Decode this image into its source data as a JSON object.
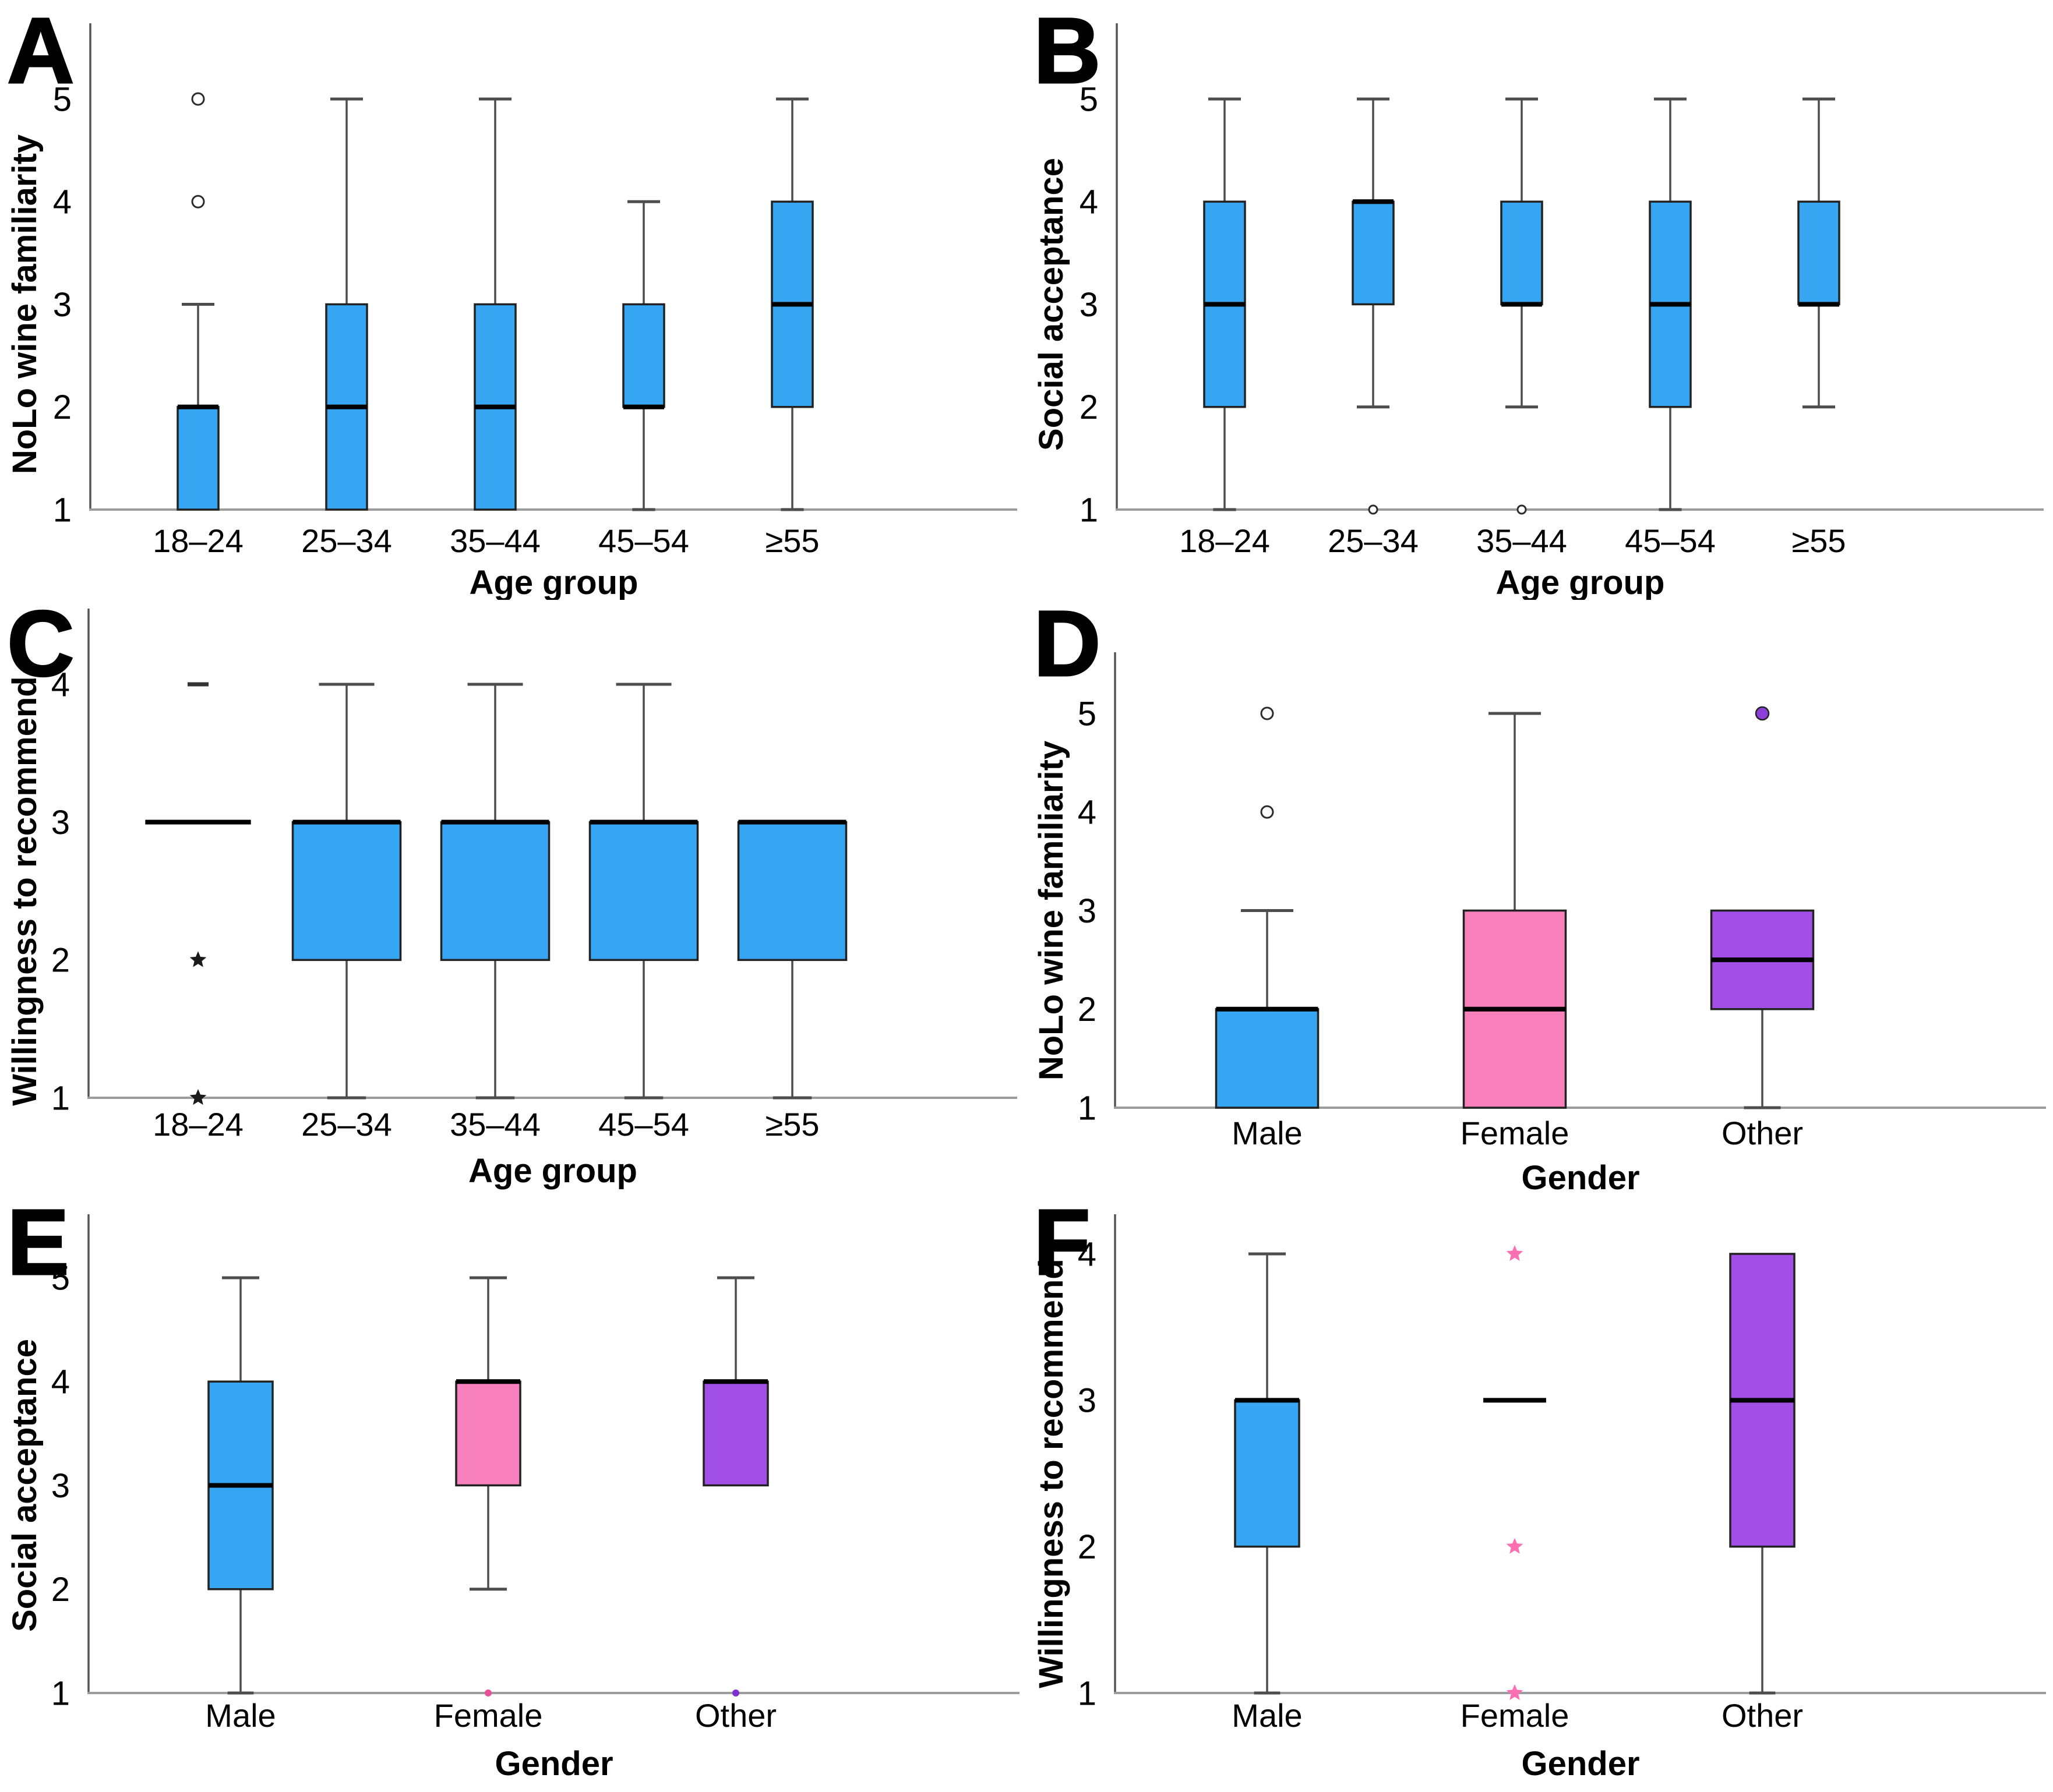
{
  "figure": {
    "background": "#ffffff",
    "accent_colors": {
      "blue": "#36A5F2",
      "pink": "#F780BD",
      "purple": "#A14FE4"
    }
  },
  "chart_data": [
    {
      "type": "boxplot",
      "id": "A",
      "ylabel": "NoLo wine familiarity",
      "xlabel": "Age group",
      "ylim": [
        1,
        5
      ],
      "yticks": [
        1,
        2,
        3,
        4,
        5
      ],
      "categories": [
        "18–24",
        "25–34",
        "35–44",
        "45–54",
        "≥55"
      ],
      "boxes": [
        {
          "category": "18–24",
          "q1": 1,
          "q3": 2,
          "median": 2,
          "whisker_low": null,
          "whisker_high": 3,
          "fill": "#36A5F2",
          "outliers": [
            {
              "value": 4,
              "marker": "circle",
              "color": "#2b2b2b"
            },
            {
              "value": 5,
              "marker": "circle",
              "color": "#2b2b2b"
            }
          ]
        },
        {
          "category": "25–34",
          "q1": 1,
          "q3": 3,
          "median": 2,
          "whisker_low": null,
          "whisker_high": 5,
          "fill": "#36A5F2",
          "outliers": []
        },
        {
          "category": "35–44",
          "q1": 1,
          "q3": 3,
          "median": 2,
          "whisker_low": null,
          "whisker_high": 5,
          "fill": "#36A5F2",
          "outliers": []
        },
        {
          "category": "45–54",
          "q1": 2,
          "q3": 3,
          "median": 2,
          "whisker_low": 1,
          "whisker_high": 4,
          "fill": "#36A5F2",
          "outliers": []
        },
        {
          "category": "≥55",
          "q1": 2,
          "q3": 4,
          "median": 3,
          "whisker_low": 1,
          "whisker_high": 5,
          "fill": "#36A5F2",
          "outliers": []
        }
      ]
    },
    {
      "type": "boxplot",
      "id": "B",
      "ylabel": "Social acceptance",
      "xlabel": "Age group",
      "ylim": [
        1,
        5
      ],
      "yticks": [
        1,
        2,
        3,
        4,
        5
      ],
      "categories": [
        "18–24",
        "25–34",
        "35–44",
        "45–54",
        "≥55"
      ],
      "boxes": [
        {
          "category": "18–24",
          "q1": 2,
          "q3": 4,
          "median": 3,
          "whisker_low": 1,
          "whisker_high": 5,
          "fill": "#36A5F2",
          "outliers": []
        },
        {
          "category": "25–34",
          "q1": 3,
          "q3": 4,
          "median": 4,
          "whisker_low": 2,
          "whisker_high": 5,
          "fill": "#36A5F2",
          "outliers": [
            {
              "value": 1,
              "marker": "circle-small",
              "color": "#2b2b2b"
            }
          ]
        },
        {
          "category": "35–44",
          "q1": 3,
          "q3": 4,
          "median": 3,
          "whisker_low": 2,
          "whisker_high": 5,
          "fill": "#36A5F2",
          "outliers": [
            {
              "value": 1,
              "marker": "circle-small",
              "color": "#2b2b2b"
            }
          ]
        },
        {
          "category": "45–54",
          "q1": 2,
          "q3": 4,
          "median": 3,
          "whisker_low": 1,
          "whisker_high": 5,
          "fill": "#36A5F2",
          "outliers": []
        },
        {
          "category": "≥55",
          "q1": 3,
          "q3": 4,
          "median": 3,
          "whisker_low": 2,
          "whisker_high": 5,
          "fill": "#36A5F2",
          "outliers": []
        }
      ]
    },
    {
      "type": "boxplot",
      "id": "C",
      "ylabel": "Willingness to recommend",
      "xlabel": "Age group",
      "ylim": [
        1,
        4
      ],
      "yticks": [
        1,
        2,
        3,
        4
      ],
      "categories": [
        "18–24",
        "25–34",
        "35–44",
        "45–54",
        "≥55"
      ],
      "boxes": [
        {
          "category": "18–24",
          "q1": null,
          "q3": null,
          "median": 3,
          "whisker_low": null,
          "whisker_high": null,
          "fill": "#36A5F2",
          "outliers": [
            {
              "value": 4,
              "marker": "dash",
              "color": "#333333"
            },
            {
              "value": 2,
              "marker": "star",
              "color": "#1a1a1a"
            },
            {
              "value": 1,
              "marker": "star",
              "color": "#1a1a1a"
            }
          ]
        },
        {
          "category": "25–34",
          "q1": 2,
          "q3": 3,
          "median": 3,
          "whisker_low": 1,
          "whisker_high": 4,
          "fill": "#36A5F2",
          "outliers": []
        },
        {
          "category": "35–44",
          "q1": 2,
          "q3": 3,
          "median": 3,
          "whisker_low": 1,
          "whisker_high": 4,
          "fill": "#36A5F2",
          "outliers": []
        },
        {
          "category": "45–54",
          "q1": 2,
          "q3": 3,
          "median": 3,
          "whisker_low": 1,
          "whisker_high": 4,
          "fill": "#36A5F2",
          "outliers": []
        },
        {
          "category": "≥55",
          "q1": 2,
          "q3": 3,
          "median": 3,
          "whisker_low": 1,
          "whisker_high": null,
          "fill": "#36A5F2",
          "outliers": []
        }
      ]
    },
    {
      "type": "boxplot",
      "id": "D",
      "ylabel": "NoLo wine familiarity",
      "xlabel": "Gender",
      "ylim": [
        1,
        5
      ],
      "yticks": [
        1,
        2,
        3,
        4,
        5
      ],
      "categories": [
        "Male",
        "Female",
        "Other"
      ],
      "boxes": [
        {
          "category": "Male",
          "q1": 1,
          "q3": 2,
          "median": 2,
          "whisker_low": null,
          "whisker_high": 3,
          "fill": "#36A5F2",
          "outliers": [
            {
              "value": 4,
              "marker": "circle",
              "color": "#2b2b2b"
            },
            {
              "value": 5,
              "marker": "circle",
              "color": "#2b2b2b"
            }
          ]
        },
        {
          "category": "Female",
          "q1": 1,
          "q3": 3,
          "median": 2,
          "whisker_low": null,
          "whisker_high": 5,
          "fill": "#F780BD",
          "outliers": []
        },
        {
          "category": "Other",
          "q1": 2,
          "q3": 3,
          "median": 2.5,
          "whisker_low": 1,
          "whisker_high": null,
          "fill": "#A14FE4",
          "outliers": [
            {
              "value": 5,
              "marker": "circle-filled",
              "color": "#8B3FD8"
            }
          ]
        }
      ]
    },
    {
      "type": "boxplot",
      "id": "E",
      "ylabel": "Social acceptance",
      "xlabel": "Gender",
      "ylim": [
        1,
        5
      ],
      "yticks": [
        1,
        2,
        3,
        4,
        5
      ],
      "categories": [
        "Male",
        "Female",
        "Other"
      ],
      "boxes": [
        {
          "category": "Male",
          "q1": 2,
          "q3": 4,
          "median": 3,
          "whisker_low": 1,
          "whisker_high": 5,
          "fill": "#36A5F2",
          "outliers": []
        },
        {
          "category": "Female",
          "q1": 3,
          "q3": 4,
          "median": 4,
          "whisker_low": 2,
          "whisker_high": 5,
          "fill": "#F780BD",
          "outliers": [
            {
              "value": 1,
              "marker": "dot",
              "color": "#E8519A"
            }
          ]
        },
        {
          "category": "Other",
          "q1": 3,
          "q3": 4,
          "median": 4,
          "whisker_low": null,
          "whisker_high": 5,
          "fill": "#A14FE4",
          "outliers": [
            {
              "value": 1,
              "marker": "dot",
              "color": "#7E2FD1"
            }
          ]
        }
      ]
    },
    {
      "type": "boxplot",
      "id": "F",
      "ylabel": "Willingness to recommend",
      "xlabel": "Gender",
      "ylim": [
        1,
        4
      ],
      "yticks": [
        1,
        2,
        3,
        4
      ],
      "categories": [
        "Male",
        "Female",
        "Other"
      ],
      "boxes": [
        {
          "category": "Male",
          "q1": 2,
          "q3": 3,
          "median": 3,
          "whisker_low": 1,
          "whisker_high": 4,
          "fill": "#36A5F2",
          "outliers": []
        },
        {
          "category": "Female",
          "q1": null,
          "q3": null,
          "median": 3,
          "whisker_low": null,
          "whisker_high": null,
          "fill": "#F780BD",
          "outliers": [
            {
              "value": 4,
              "marker": "star",
              "color": "#FC6FB1"
            },
            {
              "value": 2,
              "marker": "star",
              "color": "#FC6FB1"
            },
            {
              "value": 1,
              "marker": "star",
              "color": "#FC6FB1"
            }
          ]
        },
        {
          "category": "Other",
          "q1": 2,
          "q3": 4,
          "median": 3,
          "whisker_low": 1,
          "whisker_high": null,
          "fill": "#A14FE4",
          "outliers": []
        }
      ]
    }
  ]
}
